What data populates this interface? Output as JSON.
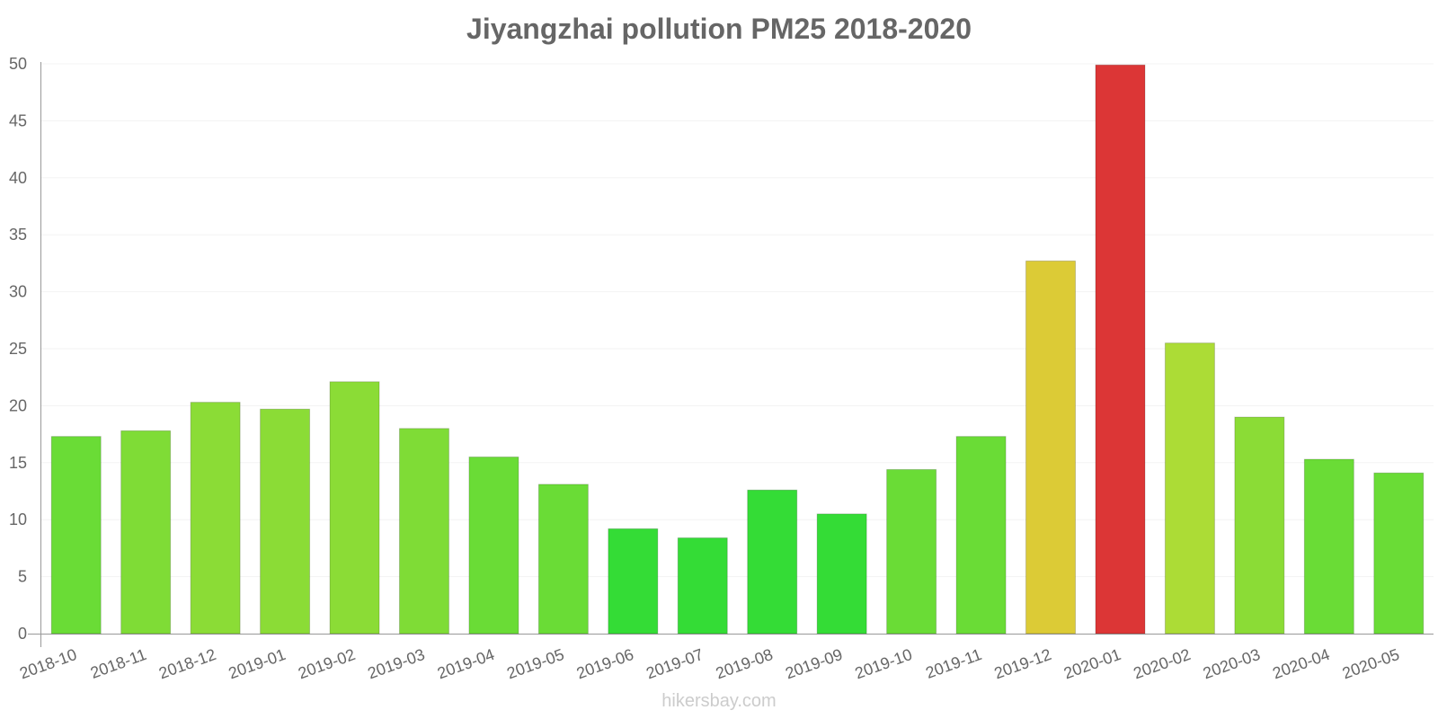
{
  "chart_data": {
    "type": "bar",
    "title": "Jiyangzhai pollution PM25 2018-2020",
    "xlabel": "",
    "ylabel": "",
    "ylim": [
      0,
      50
    ],
    "yticks": [
      "0",
      "5",
      "10",
      "15",
      "20",
      "25",
      "30",
      "35",
      "40",
      "45",
      "50"
    ],
    "grid": true,
    "categories": [
      "2018-10",
      "2018-11",
      "2018-12",
      "2019-01",
      "2019-02",
      "2019-03",
      "2019-04",
      "2019-05",
      "2019-06",
      "2019-07",
      "2019-08",
      "2019-09",
      "2019-10",
      "2019-11",
      "2019-12",
      "2020-01",
      "2020-02",
      "2020-03",
      "2020-04",
      "2020-05"
    ],
    "values": [
      17.3,
      17.8,
      20.3,
      19.7,
      22.1,
      18.0,
      15.5,
      13.1,
      9.2,
      8.4,
      12.6,
      10.5,
      14.4,
      17.3,
      32.7,
      49.9,
      25.5,
      19.0,
      15.3,
      14.1
    ],
    "colors": [
      "#6adc36",
      "#7fdc36",
      "#8bdc36",
      "#8bdc36",
      "#8bdc36",
      "#7fdc36",
      "#6adc36",
      "#6adc36",
      "#34dc36",
      "#34dc36",
      "#34dc36",
      "#34dc36",
      "#6adc36",
      "#6adc36",
      "#dccb36",
      "#dc3636",
      "#acdc36",
      "#8bdc36",
      "#6adc36",
      "#6adc36"
    ]
  },
  "watermark": "hikersbay.com"
}
